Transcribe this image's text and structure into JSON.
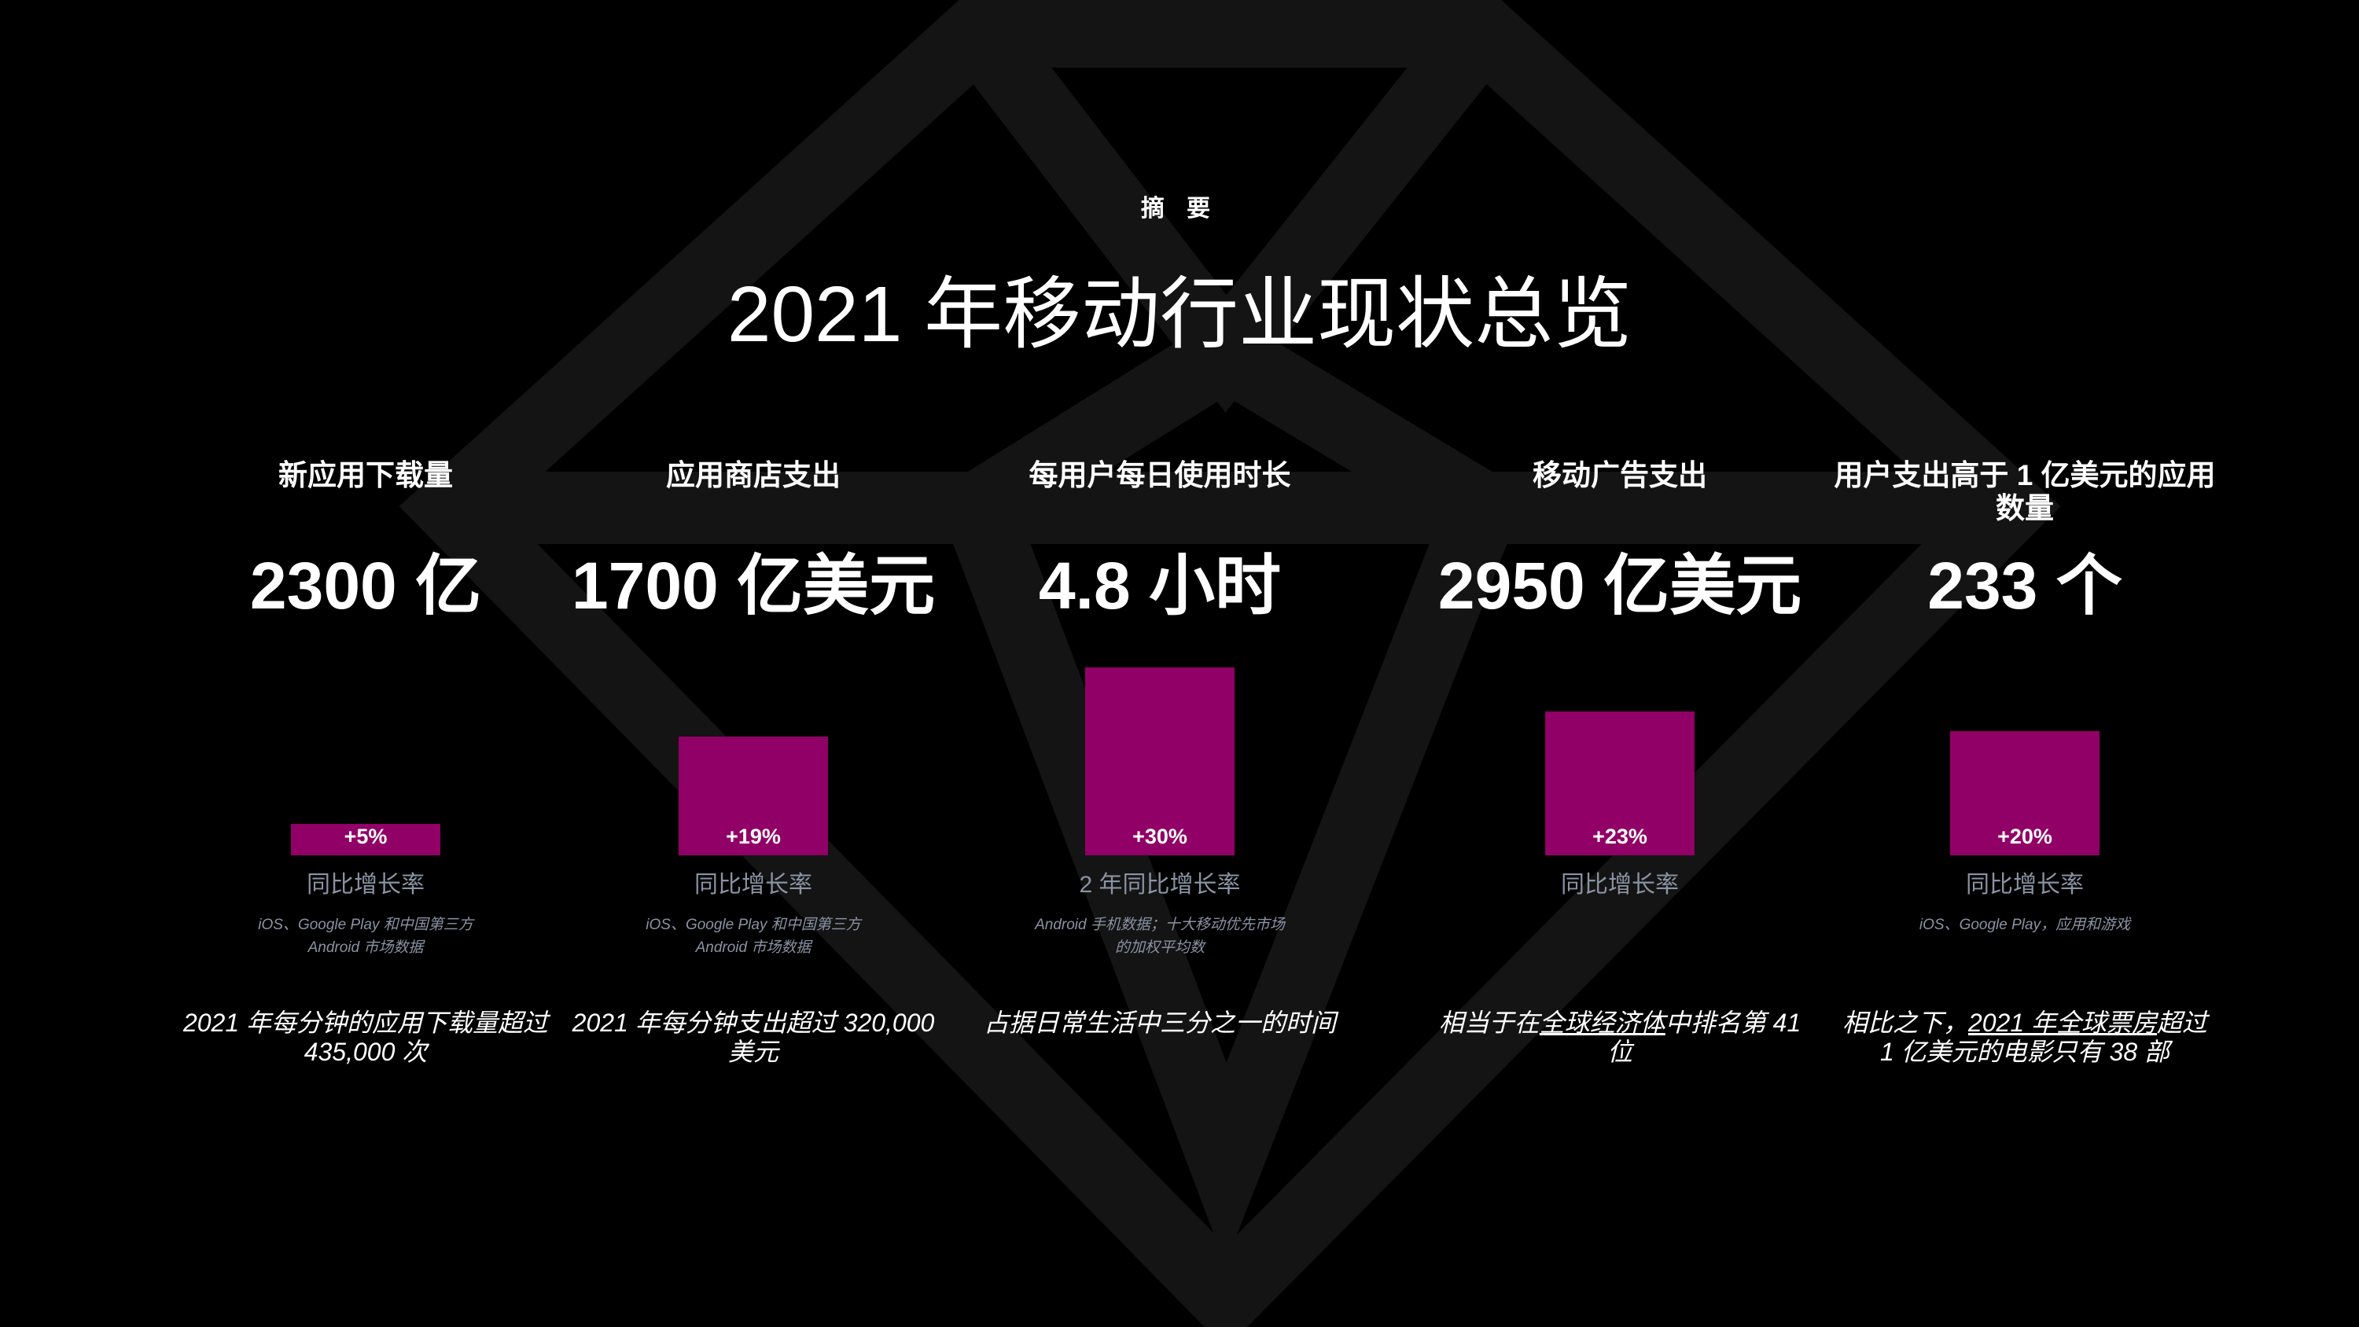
{
  "colors": {
    "accent": "#910066",
    "background": "#000000",
    "diamond": "#141414",
    "muted_text": "#8a93a3"
  },
  "header": {
    "eyebrow": "摘 要",
    "title": "2021 年移动行业现状总览"
  },
  "stats": [
    {
      "heading": "新应用下载量",
      "value": "2300 亿",
      "growth": "+5%",
      "growth_label": "同比增长率",
      "source": "iOS、Google Play 和中国第三方 Android 市场数据",
      "note_parts": [
        {
          "text": "2021 年每分钟的应用下载量超过 435,000 次",
          "underline": false
        }
      ]
    },
    {
      "heading": "应用商店支出",
      "value": "1700 亿美元",
      "growth": "+19%",
      "growth_label": "同比增长率",
      "source": "iOS、Google Play 和中国第三方 Android 市场数据",
      "note_parts": [
        {
          "text": "2021 年每分钟支出超过 320,000 美元",
          "underline": false
        }
      ]
    },
    {
      "heading": "每用户每日使用时长",
      "value": "4.8 小时",
      "growth": "+30%",
      "growth_label": "2 年同比增长率",
      "source": "Android 手机数据；十大移动优先市场的加权平均数",
      "note_parts": [
        {
          "text": "占据日常生活中三分之一的时间",
          "underline": false
        }
      ]
    },
    {
      "heading": "移动广告支出",
      "value": "2950 亿美元",
      "growth": "+23%",
      "growth_label": "同比增长率",
      "source": "",
      "note_parts": [
        {
          "text": "相当于在",
          "underline": false
        },
        {
          "text": "全球经济体",
          "underline": true
        },
        {
          "text": "中排名第 41 位",
          "underline": false
        }
      ]
    },
    {
      "heading": "用户支出高于 1 亿美元的应用数量",
      "value": "233 个",
      "growth": "+20%",
      "growth_label": "同比增长率",
      "source": "iOS、Google Play，应用和游戏",
      "note_parts": [
        {
          "text": "相比之下，",
          "underline": false
        },
        {
          "text": "2021 年全球票房",
          "underline": true
        },
        {
          "text": "超过 1 亿美元的电影只有 38 部",
          "underline": false
        }
      ]
    }
  ]
}
